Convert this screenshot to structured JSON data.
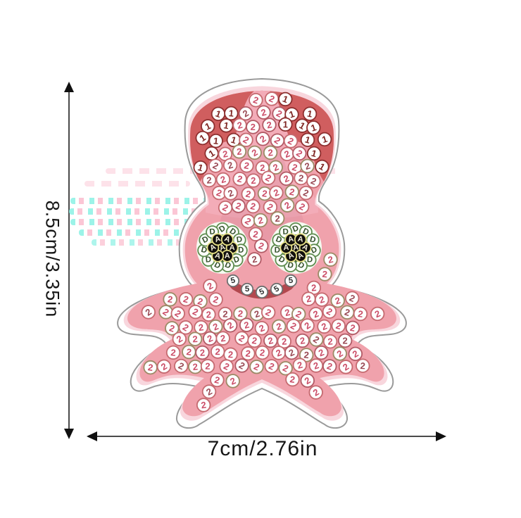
{
  "product_diagram": {
    "height_label": "8.5cm/3.35in",
    "width_label": "7cm/2.76in"
  },
  "sticker": {
    "kind": "diamond-painting-octopus-sticker",
    "palette": {
      "body_pink": "#F0A2AC",
      "halo_pink": "#F8D6DD",
      "outline_gray": "#9A9A9A",
      "fin_red": "#D05E5F",
      "triangle_pink": "#F3ACB8",
      "shade_rose": "#D8879A",
      "eye_white": "#F5FAF1",
      "pupil_black": "#12100D",
      "smile_red": "#B2484E"
    },
    "dot_codes": [
      {
        "code": "1",
        "area": "head-fin",
        "fill": "#FFFFFF",
        "ring": "#8E2F2F",
        "glyph": "#7E2522"
      },
      {
        "code": "2",
        "area": "body-tentacles",
        "fill": "#FFFFFF",
        "ring": "#C56A70",
        "glyph": "#CB4E68"
      },
      {
        "code": "D",
        "area": "eye-iris-ring",
        "fill": "#FDFFFB",
        "ring": "#5F8C4F",
        "glyph": "#35512C"
      },
      {
        "code": "A",
        "area": "eye-pupil",
        "fill": "#12100D",
        "ring": "#E7E187",
        "glyph": "#F2EEDA"
      },
      {
        "code": "5",
        "area": "mouth",
        "fill": "#FFFFFF",
        "ring": "#6F6F6F",
        "glyph": "#2F2F2F"
      }
    ]
  }
}
